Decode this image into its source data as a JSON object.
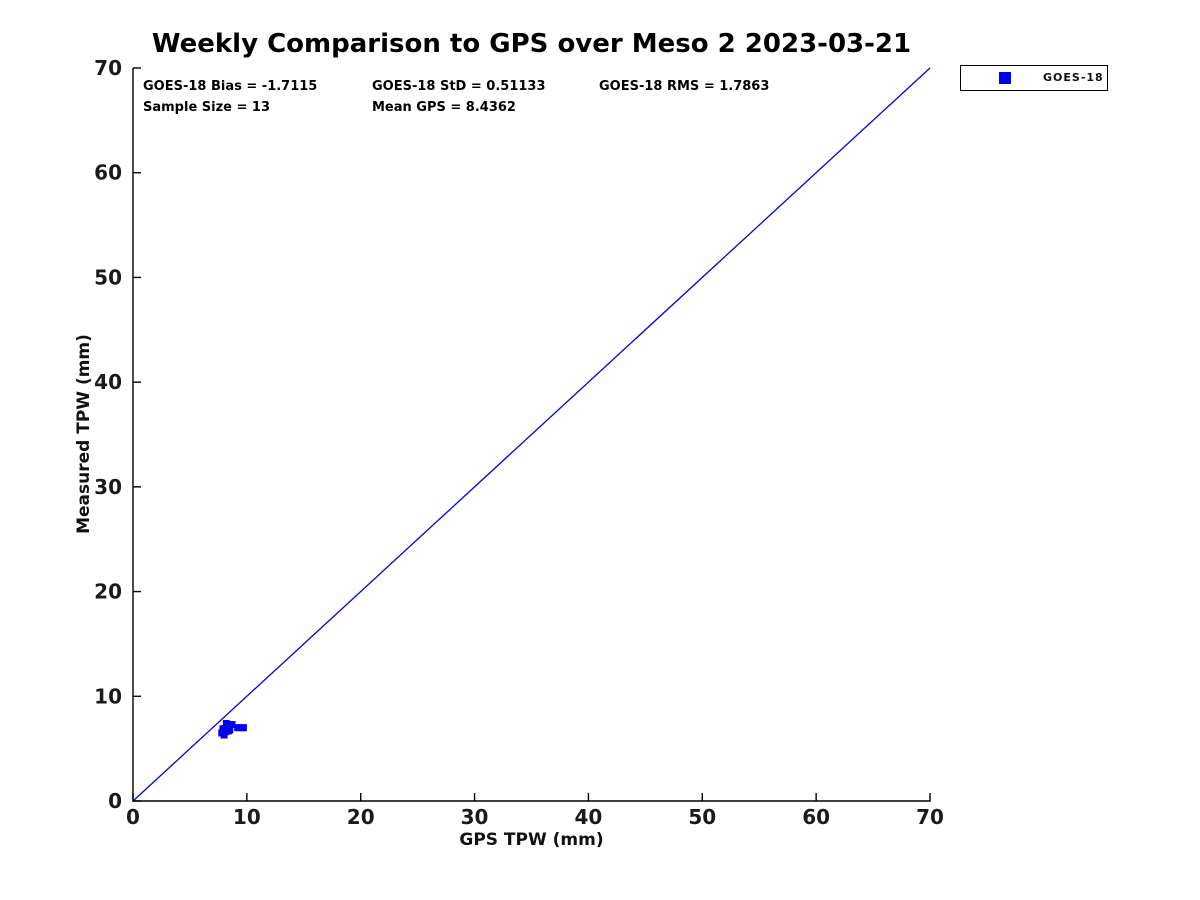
{
  "title": "Weekly Comparison to GPS over Meso 2 2023-03-21",
  "stats": {
    "bias": "GOES-18 Bias = -1.7115",
    "std": "GOES-18 StD = 0.51133",
    "rms": "GOES-18 RMS = 1.7863",
    "sample_size": "Sample Size = 13",
    "mean_gps": "Mean GPS = 8.4362"
  },
  "legend": {
    "label": "GOES-18",
    "marker_color": "#0000ee"
  },
  "axes": {
    "xlabel": "GPS TPW (mm)",
    "ylabel": "Measured TPW (mm)"
  },
  "colors": {
    "identity_line": "#0000dd",
    "marker": "#0000ee",
    "axis": "#000000"
  },
  "chart_data": {
    "type": "scatter",
    "title": "Weekly Comparison to GPS over Meso 2 2023-03-21",
    "xlabel": "GPS TPW (mm)",
    "ylabel": "Measured TPW (mm)",
    "xlim": [
      0,
      70
    ],
    "ylim": [
      0,
      70
    ],
    "x_ticks": [
      0,
      10,
      20,
      30,
      40,
      50,
      60,
      70
    ],
    "y_ticks": [
      0,
      10,
      20,
      30,
      40,
      50,
      60,
      70
    ],
    "grid": false,
    "legend_position": "outside-top-right",
    "reference_line": {
      "meaning": "1:1 identity line",
      "from": [
        0,
        0
      ],
      "to": [
        70,
        70
      ],
      "color": "#0000dd"
    },
    "series": [
      {
        "name": "GOES-18",
        "marker": "square",
        "color": "#0000ee",
        "points": [
          [
            7.8,
            6.5
          ],
          [
            7.9,
            6.9
          ],
          [
            8.0,
            6.3
          ],
          [
            8.0,
            6.9
          ],
          [
            8.1,
            6.6
          ],
          [
            8.2,
            7.4
          ],
          [
            8.3,
            6.7
          ],
          [
            8.4,
            6.7
          ],
          [
            8.5,
            6.8
          ],
          [
            8.7,
            7.3
          ],
          [
            9.2,
            7.0
          ],
          [
            9.5,
            7.0
          ],
          [
            9.7,
            7.0
          ]
        ]
      }
    ],
    "annotations": {
      "bias": -1.7115,
      "std": 0.51133,
      "rms": 1.7863,
      "sample_size": 13,
      "mean_gps": 8.4362
    }
  }
}
